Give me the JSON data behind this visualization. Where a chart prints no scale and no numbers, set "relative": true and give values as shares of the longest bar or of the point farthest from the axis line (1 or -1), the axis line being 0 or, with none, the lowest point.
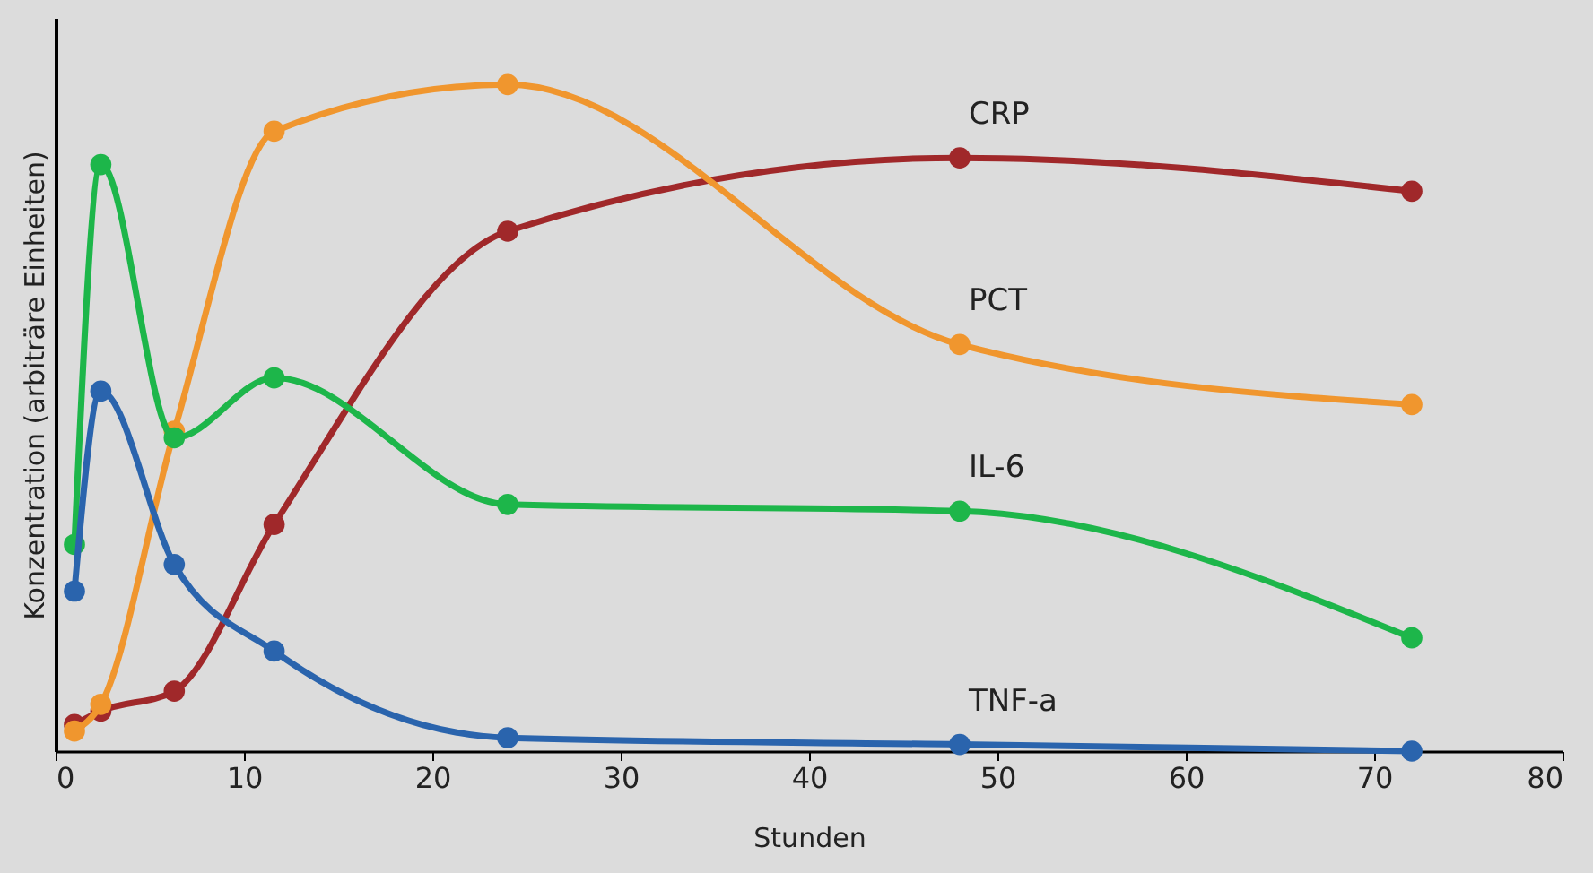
{
  "chart_data": {
    "type": "line",
    "xlabel": "Stunden",
    "ylabel": "Konzentration (arbiträre Einheiten)",
    "relative": true,
    "xlim": [
      0,
      80
    ],
    "xticks": [
      0,
      10,
      20,
      30,
      40,
      50,
      60,
      70,
      80
    ],
    "marker": "circle",
    "line_style": "solid",
    "series": [
      {
        "name": "CRP",
        "color": "#a0282a",
        "x": [
          1,
          2.4,
          6.3,
          11.6,
          24,
          48,
          72
        ],
        "values": [
          0.04,
          0.06,
          0.09,
          0.34,
          0.78,
          0.89,
          0.84
        ]
      },
      {
        "name": "PCT",
        "color": "#f0962e",
        "x": [
          1,
          2.4,
          6.3,
          11.6,
          24,
          48,
          72
        ],
        "values": [
          0.03,
          0.07,
          0.48,
          0.93,
          1.0,
          0.61,
          0.52
        ]
      },
      {
        "name": "IL-6",
        "color": "#1db64a",
        "x": [
          1,
          2.4,
          6.3,
          11.6,
          24,
          48,
          72
        ],
        "values": [
          0.31,
          0.88,
          0.47,
          0.56,
          0.37,
          0.36,
          0.17
        ]
      },
      {
        "name": "TNF-a",
        "color": "#2a64ad",
        "x": [
          1,
          2.4,
          6.3,
          11.6,
          24,
          48,
          72
        ],
        "values": [
          0.24,
          0.54,
          0.28,
          0.15,
          0.02,
          0.01,
          0.0
        ]
      }
    ]
  }
}
